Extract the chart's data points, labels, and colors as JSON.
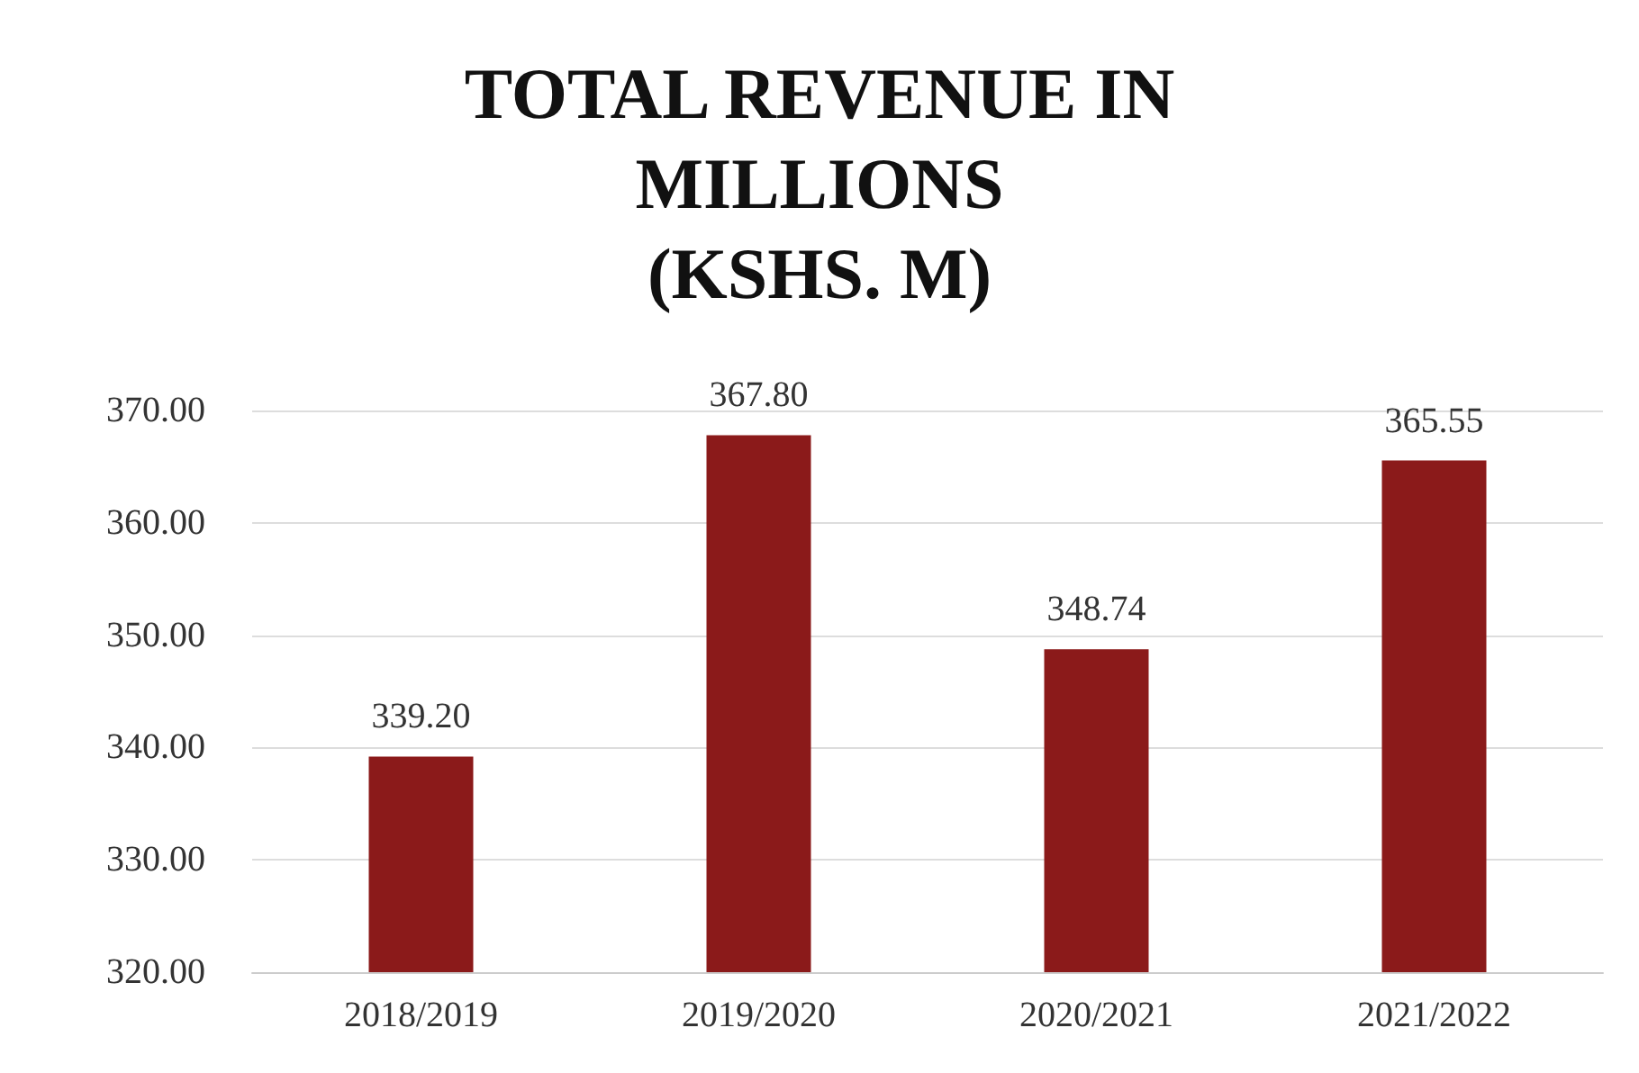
{
  "chart_data": {
    "type": "bar",
    "title": "TOTAL REVENUE IN\nMILLIONS\n(KSHS. M)",
    "categories": [
      "2018/2019",
      "2019/2020",
      "2020/2021",
      "2021/2022"
    ],
    "values": [
      339.2,
      367.8,
      348.74,
      365.55
    ],
    "value_labels": [
      "339.20",
      "367.80",
      "348.74",
      "365.55"
    ],
    "color": "#8b1a1a",
    "ylim": [
      320,
      370
    ],
    "yticks": [
      {
        "value": 320,
        "label": "320.00"
      },
      {
        "value": 330,
        "label": "330.00"
      },
      {
        "value": 340,
        "label": "340.00"
      },
      {
        "value": 350,
        "label": "350.00"
      },
      {
        "value": 360,
        "label": "360.00"
      },
      {
        "value": 370,
        "label": "370.00"
      }
    ],
    "grid": "y"
  }
}
